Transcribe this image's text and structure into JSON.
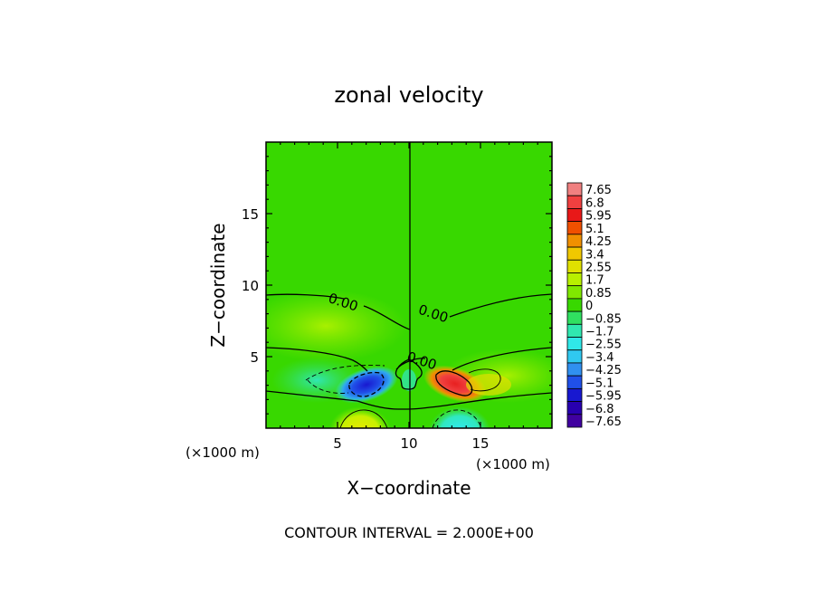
{
  "chart_data": {
    "type": "heatmap",
    "title": "zonal velocity",
    "xlabel": "X−coordinate",
    "ylabel": "Z−coordinate",
    "x_unit_left": "(×1000 m)",
    "x_unit_right": "(×1000 m)",
    "footer": "CONTOUR INTERVAL = 2.000E+00",
    "xlim": [
      0,
      20
    ],
    "ylim": [
      0,
      20
    ],
    "x_ticks": [
      {
        "value": 5,
        "label": "5"
      },
      {
        "value": 10,
        "label": "10"
      },
      {
        "value": 15,
        "label": "15"
      }
    ],
    "y_ticks": [
      {
        "value": 5,
        "label": "5"
      },
      {
        "value": 10,
        "label": "10"
      },
      {
        "value": 15,
        "label": "15"
      }
    ],
    "contour_labels": [
      {
        "text": "0.00",
        "x": 5.3,
        "z": 8.5
      },
      {
        "text": "0.00",
        "x": 11.6,
        "z": 7.7
      },
      {
        "text": "0.00",
        "x": 10.8,
        "z": 4.4
      }
    ],
    "colorbar": {
      "levels": [
        "7.65",
        "6.8",
        "5.95",
        "5.1",
        "4.25",
        "3.4",
        "2.55",
        "1.7",
        "0.85",
        "0",
        "−0.85",
        "−1.7",
        "−2.55",
        "−3.4",
        "−4.25",
        "−5.1",
        "−5.95",
        "−6.8",
        "−7.65"
      ],
      "colors": [
        "#f08080",
        "#f04040",
        "#e81818",
        "#f05000",
        "#f09000",
        "#f0c800",
        "#e0e000",
        "#b8f000",
        "#80e800",
        "#38d800",
        "#30e060",
        "#30e8b0",
        "#30e8e8",
        "#30c8f0",
        "#3090f0",
        "#2050e8",
        "#1818d0",
        "#2800b0",
        "#4000a0"
      ]
    },
    "features": {
      "background_value": 0,
      "positive_max": 7.65,
      "positive_max_location": [
        12.7,
        3.2
      ],
      "negative_min": -7.65,
      "negative_min_location": [
        6.8,
        3.0
      ],
      "weak_positive_bottom_location": [
        6.5,
        0.5
      ],
      "weak_negative_bottom_location": [
        13.5,
        0.5
      ]
    }
  }
}
